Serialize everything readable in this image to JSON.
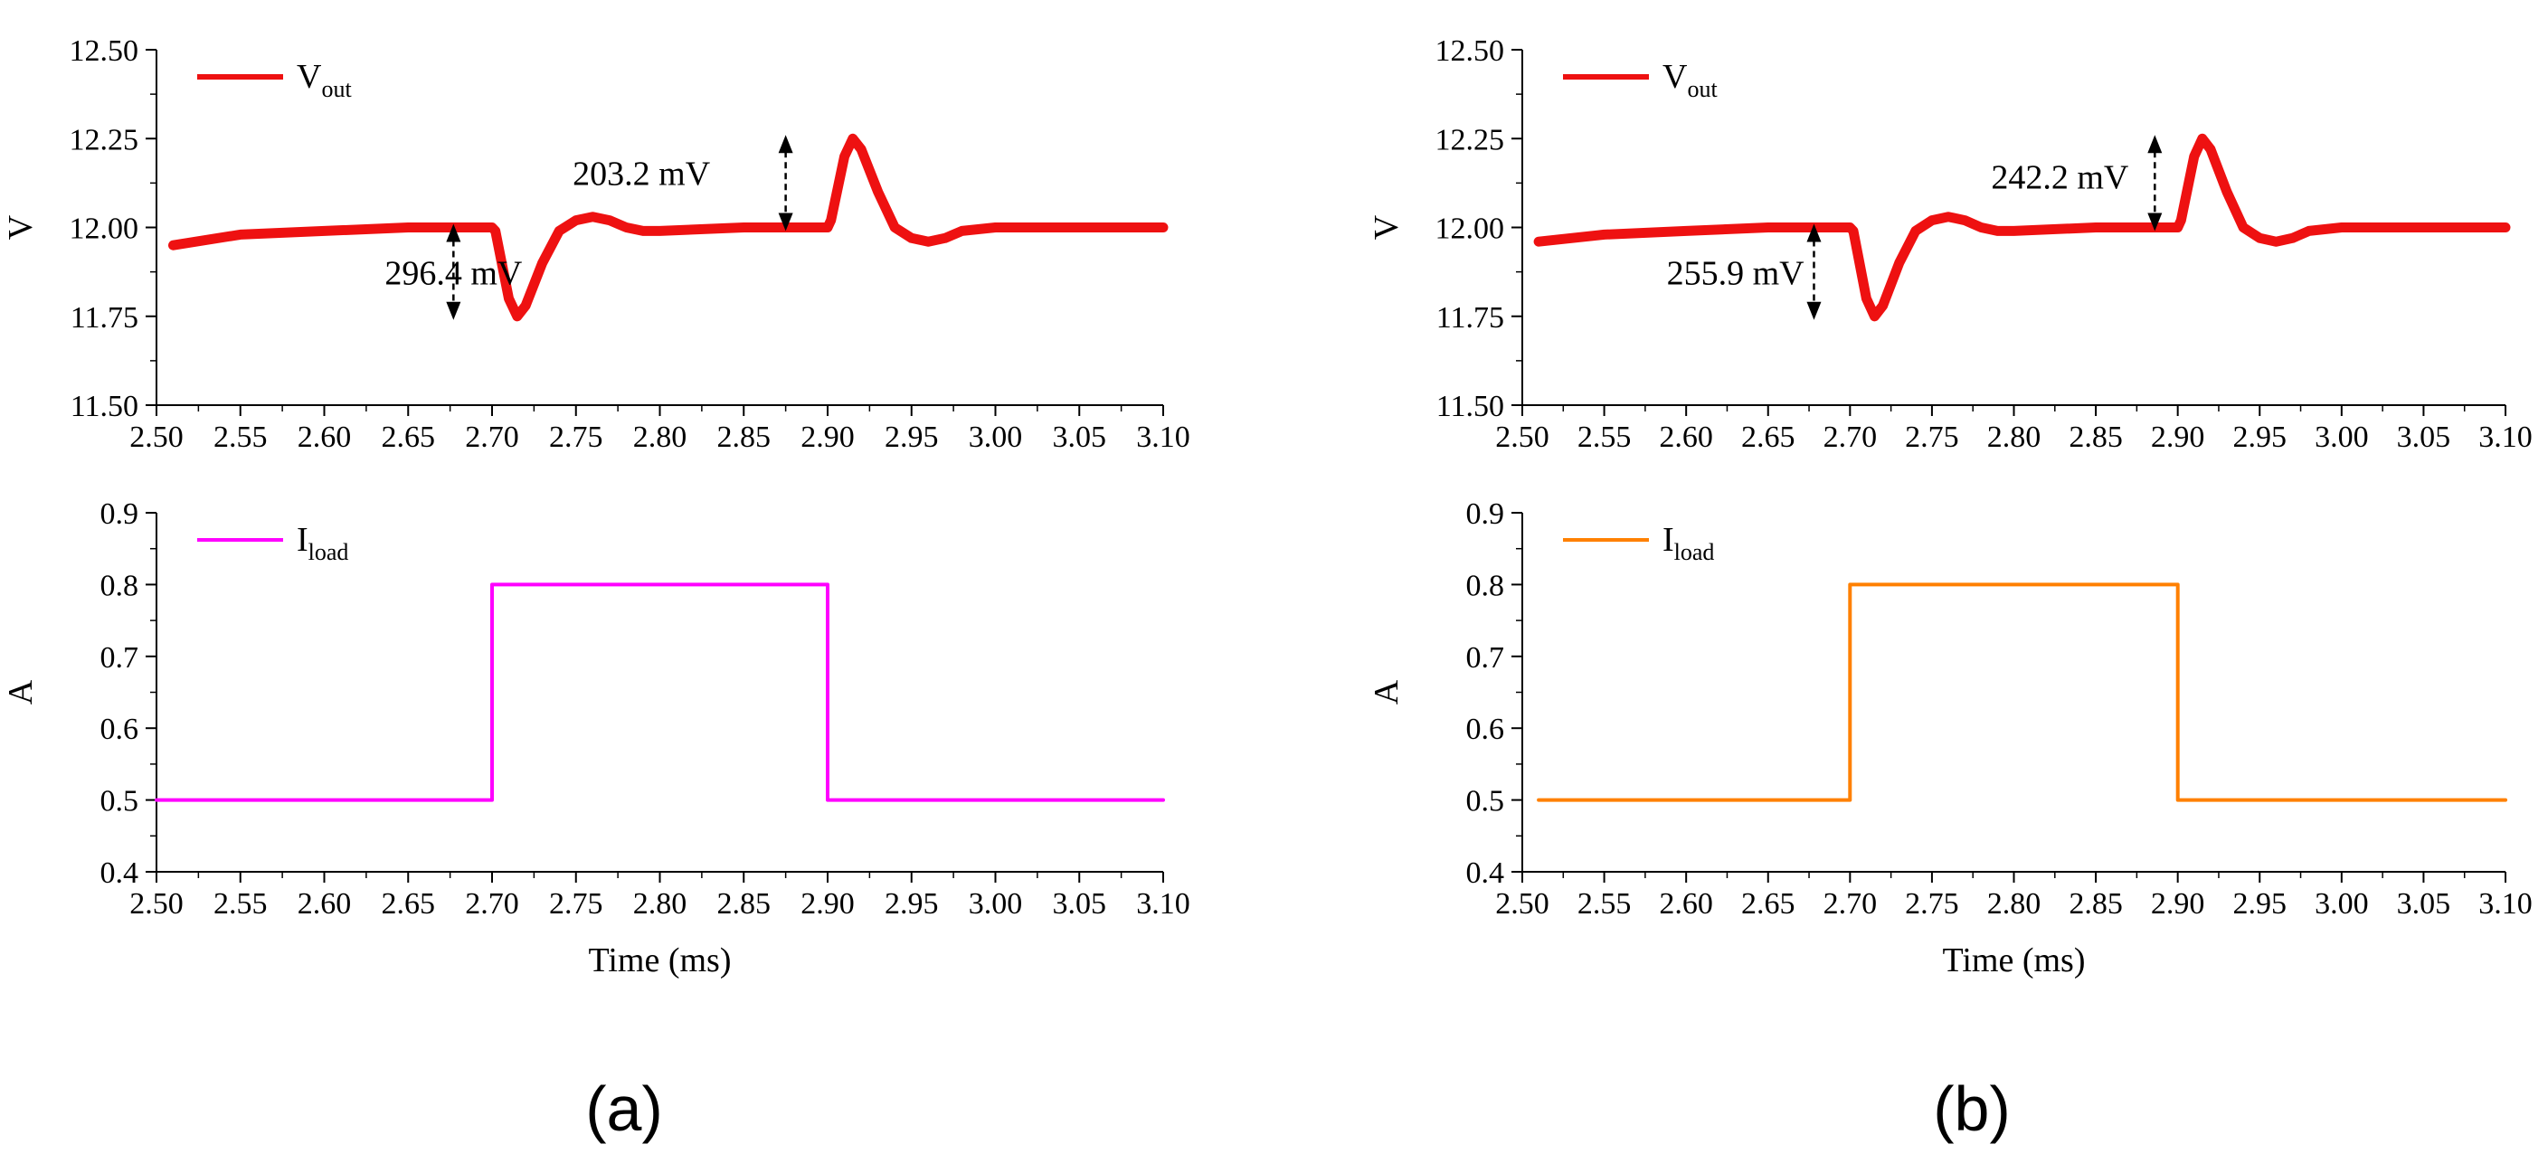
{
  "figure": {
    "panels": [
      {
        "caption": "(a)",
        "charts": [
          {
            "id": "a-top",
            "type": "line",
            "ylabel": "V",
            "xlabel": "",
            "xlim": [
              2.5,
              3.1
            ],
            "ylim": [
              11.5,
              12.5
            ],
            "xticks": [
              "2.50",
              "2.55",
              "2.60",
              "2.65",
              "2.70",
              "2.75",
              "2.80",
              "2.85",
              "2.90",
              "2.95",
              "3.00",
              "3.05",
              "3.10"
            ],
            "yticks": [
              "11.50",
              "11.75",
              "12.00",
              "12.25",
              "12.50"
            ],
            "legend": {
              "base": "V",
              "sub": "out",
              "color": "#ee1111",
              "position": "top-left"
            },
            "series": [
              {
                "name": "Vout",
                "color": "#ee1111",
                "thick": true,
                "x": [
                  2.51,
                  2.55,
                  2.6,
                  2.65,
                  2.7,
                  2.702,
                  2.71,
                  2.715,
                  2.72,
                  2.73,
                  2.74,
                  2.75,
                  2.76,
                  2.77,
                  2.78,
                  2.79,
                  2.8,
                  2.85,
                  2.9,
                  2.902,
                  2.91,
                  2.915,
                  2.92,
                  2.93,
                  2.94,
                  2.95,
                  2.96,
                  2.97,
                  2.98,
                  3.0,
                  3.05,
                  3.1
                ],
                "y": [
                  11.95,
                  11.98,
                  11.99,
                  12.0,
                  12.0,
                  11.99,
                  11.8,
                  11.75,
                  11.78,
                  11.9,
                  11.99,
                  12.02,
                  12.03,
                  12.02,
                  12.0,
                  11.99,
                  11.99,
                  12.0,
                  12.0,
                  12.02,
                  12.2,
                  12.25,
                  12.22,
                  12.1,
                  12.0,
                  11.97,
                  11.96,
                  11.97,
                  11.99,
                  12.0,
                  12.0,
                  12.0
                ]
              }
            ],
            "annotations": [
              {
                "text": "296.4 mV",
                "x": 2.677,
                "y1": 12.0,
                "y2": 11.75,
                "label_x": 2.677,
                "label_y": 11.87,
                "align": "center"
              },
              {
                "text": "203.2 mV",
                "x": 2.875,
                "y1": 12.25,
                "y2": 12.0,
                "label_x": 2.83,
                "label_y": 12.15,
                "align": "right"
              }
            ]
          },
          {
            "id": "a-bottom",
            "type": "line",
            "ylabel": "A",
            "xlabel": "Time (ms)",
            "xlim": [
              2.5,
              3.1
            ],
            "ylim": [
              0.4,
              0.9
            ],
            "xticks": [
              "2.50",
              "2.55",
              "2.60",
              "2.65",
              "2.70",
              "2.75",
              "2.80",
              "2.85",
              "2.90",
              "2.95",
              "3.00",
              "3.05",
              "3.10"
            ],
            "yticks": [
              "0.4",
              "0.5",
              "0.6",
              "0.7",
              "0.8",
              "0.9"
            ],
            "legend": {
              "base": "I",
              "sub": "load",
              "color": "#ff00ff",
              "position": "top-left"
            },
            "series": [
              {
                "name": "Iload",
                "color": "#ff00ff",
                "thick": false,
                "x": [
                  2.5,
                  2.7,
                  2.7,
                  2.9,
                  2.9,
                  3.1
                ],
                "y": [
                  0.5,
                  0.5,
                  0.8,
                  0.8,
                  0.5,
                  0.5
                ]
              }
            ],
            "annotations": []
          }
        ]
      },
      {
        "caption": "(b)",
        "charts": [
          {
            "id": "b-top",
            "type": "line",
            "ylabel": "V",
            "xlabel": "",
            "xlim": [
              2.5,
              3.1
            ],
            "ylim": [
              11.5,
              12.5
            ],
            "xticks": [
              "2.50",
              "2.55",
              "2.60",
              "2.65",
              "2.70",
              "2.75",
              "2.80",
              "2.85",
              "2.90",
              "2.95",
              "3.00",
              "3.05",
              "3.10"
            ],
            "yticks": [
              "11.50",
              "11.75",
              "12.00",
              "12.25",
              "12.50"
            ],
            "legend": {
              "base": "V",
              "sub": "out",
              "color": "#ee1111",
              "position": "top-left"
            },
            "series": [
              {
                "name": "Vout",
                "color": "#ee1111",
                "thick": true,
                "x": [
                  2.51,
                  2.55,
                  2.6,
                  2.65,
                  2.7,
                  2.702,
                  2.71,
                  2.715,
                  2.72,
                  2.73,
                  2.74,
                  2.75,
                  2.76,
                  2.77,
                  2.78,
                  2.79,
                  2.8,
                  2.85,
                  2.9,
                  2.902,
                  2.91,
                  2.915,
                  2.92,
                  2.93,
                  2.94,
                  2.95,
                  2.96,
                  2.97,
                  2.98,
                  3.0,
                  3.05,
                  3.1
                ],
                "y": [
                  11.96,
                  11.98,
                  11.99,
                  12.0,
                  12.0,
                  11.99,
                  11.8,
                  11.75,
                  11.78,
                  11.9,
                  11.99,
                  12.02,
                  12.03,
                  12.02,
                  12.0,
                  11.99,
                  11.99,
                  12.0,
                  12.0,
                  12.02,
                  12.2,
                  12.25,
                  12.22,
                  12.1,
                  12.0,
                  11.97,
                  11.96,
                  11.97,
                  11.99,
                  12.0,
                  12.0,
                  12.0
                ]
              }
            ],
            "annotations": [
              {
                "text": "255.9 mV",
                "x": 2.678,
                "y1": 12.0,
                "y2": 11.75,
                "label_x": 2.672,
                "label_y": 11.87,
                "align": "right"
              },
              {
                "text": "242.2 mV",
                "x": 2.886,
                "y1": 12.25,
                "y2": 12.0,
                "label_x": 2.87,
                "label_y": 12.14,
                "align": "right"
              }
            ]
          },
          {
            "id": "b-bottom",
            "type": "line",
            "ylabel": "A",
            "xlabel": "Time (ms)",
            "xlim": [
              2.5,
              3.1
            ],
            "ylim": [
              0.4,
              0.9
            ],
            "xticks": [
              "2.50",
              "2.55",
              "2.60",
              "2.65",
              "2.70",
              "2.75",
              "2.80",
              "2.85",
              "2.90",
              "2.95",
              "3.00",
              "3.05",
              "3.10"
            ],
            "yticks": [
              "0.4",
              "0.5",
              "0.6",
              "0.7",
              "0.8",
              "0.9"
            ],
            "legend": {
              "base": "I",
              "sub": "load",
              "color": "#ff8000",
              "position": "top-left"
            },
            "series": [
              {
                "name": "Iload",
                "color": "#ff8000",
                "thick": false,
                "x": [
                  2.51,
                  2.7,
                  2.7,
                  2.9,
                  2.9,
                  3.1
                ],
                "y": [
                  0.5,
                  0.5,
                  0.8,
                  0.8,
                  0.5,
                  0.5
                ]
              }
            ],
            "annotations": []
          }
        ]
      }
    ]
  }
}
